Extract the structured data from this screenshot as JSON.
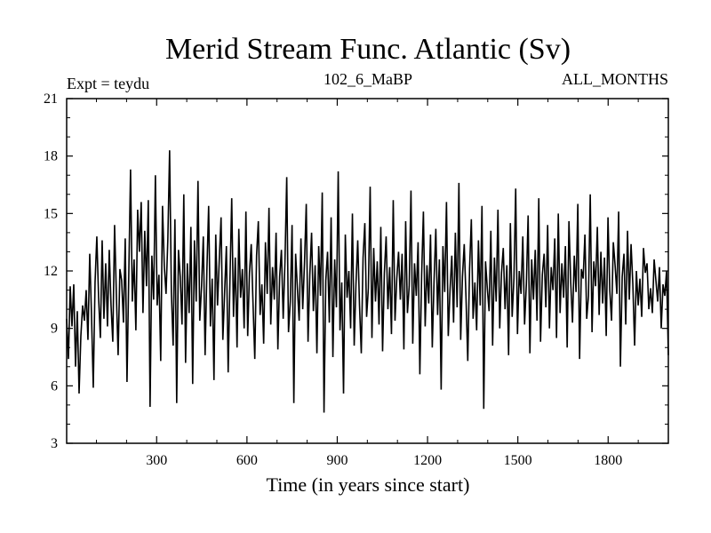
{
  "chart_data": {
    "type": "line",
    "title": "Merid Stream Func. Atlantic (Sv)",
    "subtitle_left": "Expt = teydu",
    "subtitle_center": "102_6_MaBP",
    "subtitle_right": "ALL_MONTHS",
    "xlabel": "Time (in years since start)",
    "ylabel": "",
    "xlim": [
      1,
      2000
    ],
    "ylim": [
      3,
      21
    ],
    "xticks": [
      300,
      600,
      900,
      1200,
      1500,
      1800
    ],
    "yticks": [
      3,
      6,
      9,
      12,
      15,
      18,
      21
    ],
    "grid": false,
    "series": [
      {
        "values": [
          9.5,
          7.4,
          11.2,
          9.1,
          11.3,
          7.0,
          9.9,
          5.6,
          8.6,
          10.2,
          9.4,
          11.0,
          8.4,
          12.9,
          9.7,
          5.9,
          11.4,
          13.8,
          10.6,
          8.5,
          13.6,
          9.5,
          12.4,
          9.1,
          13.1,
          10.2,
          8.3,
          14.4,
          10.8,
          7.6,
          12.1,
          11.5,
          9.3,
          13.7,
          6.2,
          11.8,
          17.3,
          10.4,
          12.6,
          8.9,
          15.2,
          13.0,
          15.6,
          9.8,
          14.1,
          11.2,
          15.7,
          4.9,
          12.8,
          10.5,
          17.0,
          10.2,
          11.8,
          7.3,
          15.4,
          12.3,
          10.8,
          13.6,
          18.3,
          10.9,
          8.1,
          14.7,
          5.1,
          13.1,
          11.7,
          9.2,
          16.0,
          7.2,
          12.4,
          9.8,
          14.3,
          6.1,
          13.6,
          10.4,
          16.7,
          9.4,
          11.2,
          13.8,
          7.6,
          12.0,
          15.4,
          9.1,
          11.6,
          6.3,
          13.9,
          10.2,
          12.6,
          14.8,
          8.4,
          10.9,
          13.3,
          6.7,
          11.5,
          15.8,
          9.6,
          12.7,
          8.0,
          14.2,
          10.6,
          12.1,
          9.0,
          15.1,
          8.6,
          11.9,
          13.4,
          10.3,
          7.4,
          12.8,
          14.6,
          9.7,
          11.3,
          8.2,
          13.5,
          10.8,
          15.3,
          9.2,
          12.2,
          10.5,
          14.0,
          7.9,
          11.7,
          13.1,
          9.5,
          12.5,
          16.9,
          8.8,
          10.4,
          14.4,
          5.1,
          12.9,
          11.1,
          9.4,
          13.7,
          10.0,
          12.4,
          15.5,
          8.3,
          11.8,
          14.0,
          9.9,
          12.3,
          7.7,
          13.3,
          10.7,
          16.1,
          4.6,
          11.5,
          13.0,
          9.3,
          14.8,
          7.5,
          12.6,
          10.1,
          17.2,
          8.9,
          11.4,
          5.6,
          13.9,
          10.6,
          12.0,
          9.0,
          15.0,
          8.1,
          11.3,
          13.6,
          10.2,
          7.7,
          12.7,
          14.5,
          9.6,
          11.1,
          16.4,
          8.5,
          13.2,
          10.4,
          12.5,
          9.2,
          14.3,
          7.8,
          11.9,
          13.8,
          10.0,
          12.2,
          8.7,
          15.7,
          9.4,
          11.6,
          13.0,
          10.5,
          12.9,
          7.9,
          14.6,
          9.8,
          11.2,
          16.2,
          8.2,
          12.4,
          10.7,
          13.5,
          6.6,
          11.8,
          15.1,
          9.1,
          12.3,
          10.3,
          13.9,
          8.0,
          11.5,
          14.2,
          9.7,
          12.6,
          5.8,
          13.3,
          10.9,
          15.6,
          8.6,
          11.0,
          12.8,
          9.3,
          14.0,
          10.1,
          16.6,
          8.4,
          11.7,
          13.4,
          10.6,
          7.3,
          12.1,
          14.7,
          9.5,
          11.4,
          8.9,
          13.6,
          10.2,
          15.4,
          4.8,
          12.5,
          11.1,
          9.9,
          14.1,
          8.1,
          12.7,
          10.4,
          15.2,
          9.0,
          11.9,
          13.2,
          10.0,
          12.3,
          7.6,
          14.5,
          9.6,
          11.6,
          16.3,
          8.7,
          12.0,
          10.8,
          13.8,
          9.2,
          11.3,
          14.9,
          7.7,
          12.6,
          10.5,
          13.1,
          9.4,
          15.8,
          8.3,
          11.8,
          12.9,
          10.1,
          14.4,
          9.0,
          12.2,
          11.0,
          13.7,
          8.5,
          15.0,
          9.8,
          12.4,
          10.6,
          13.3,
          8.0,
          14.6,
          11.4,
          9.3,
          12.8,
          10.9,
          15.5,
          7.4,
          12.1,
          11.6,
          13.9,
          9.5,
          10.7,
          16.0,
          8.8,
          12.5,
          11.2,
          14.3,
          9.7,
          13.0,
          10.3,
          12.7,
          8.6,
          14.8,
          11.0,
          9.4,
          13.5,
          12.3,
          10.8,
          15.1,
          7.0,
          11.7,
          12.9,
          9.2,
          14.1,
          10.5,
          13.4,
          11.3,
          8.1,
          12.0,
          10.2,
          11.6,
          9.6,
          13.2,
          11.9,
          12.4,
          10.0,
          11.1,
          9.8,
          12.6,
          11.5,
          10.4,
          12.2,
          9.0,
          11.3,
          10.7,
          12.0,
          7.6
        ]
      }
    ]
  }
}
